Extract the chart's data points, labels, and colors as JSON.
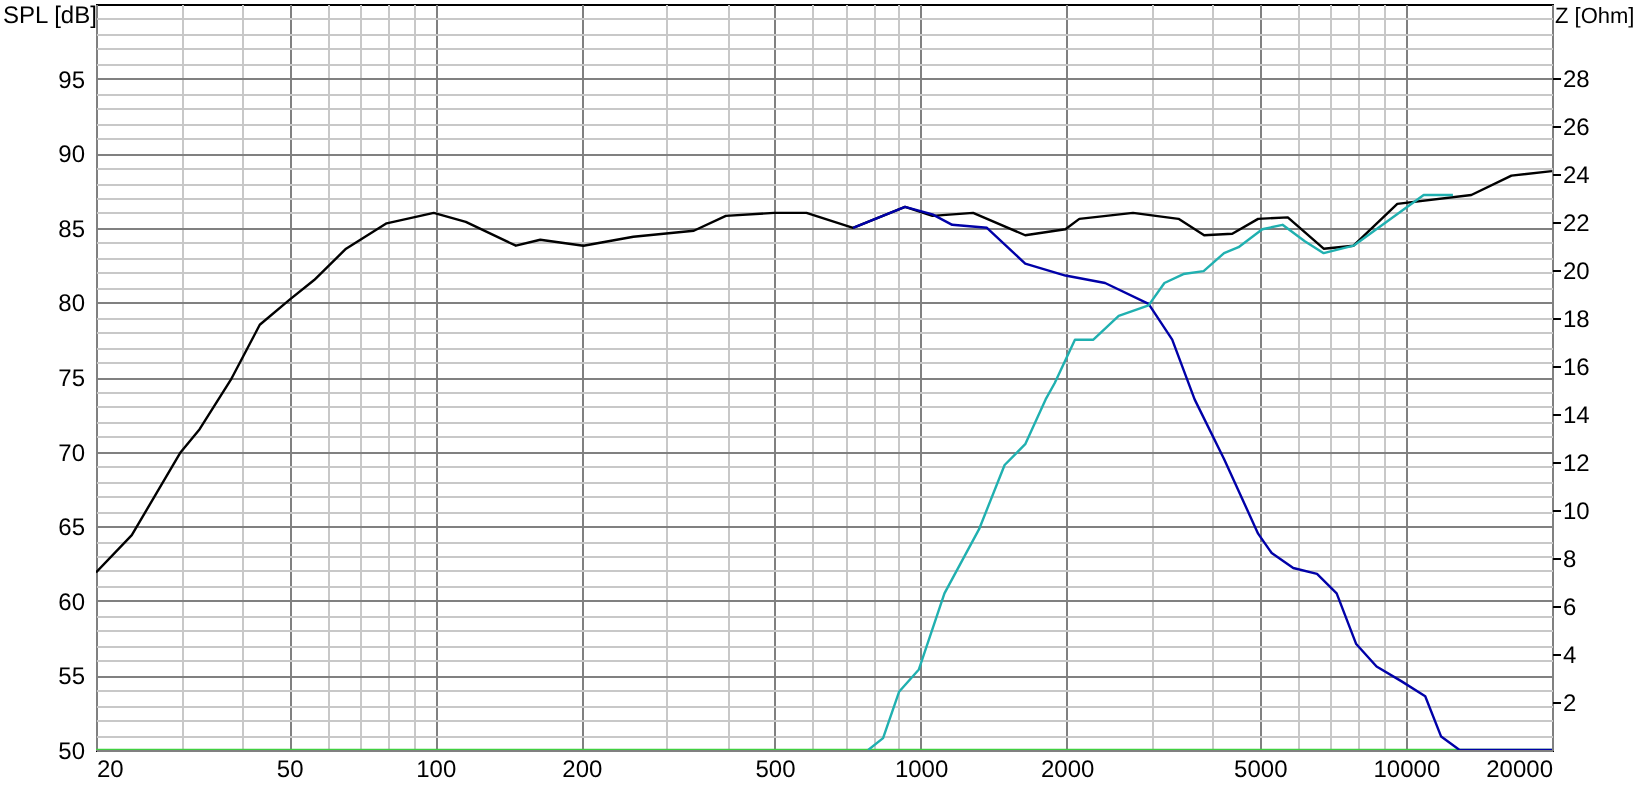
{
  "chart_data": {
    "type": "line",
    "ylabel": "SPL [dB]",
    "y2label": "Z [Ohm]",
    "xlim": [
      20,
      20000
    ],
    "log": "x",
    "grid": true,
    "xticks": [
      20,
      {
        "value": 30,
        "label": null
      },
      {
        "value": 40,
        "label": null
      },
      50,
      {
        "value": 60,
        "label": null
      },
      {
        "value": 70,
        "label": null
      },
      {
        "value": 80,
        "label": null
      },
      {
        "value": 90,
        "label": null
      },
      100,
      {
        "value": 200,
        "label": null
      },
      200,
      {
        "value": 300,
        "label": null
      },
      {
        "value": 400,
        "label": null
      },
      500,
      {
        "value": 600,
        "label": null
      },
      {
        "value": 700,
        "label": null
      },
      {
        "value": 800,
        "label": null
      },
      {
        "value": 900,
        "label": null
      },
      1000,
      2000,
      {
        "value": 3000,
        "label": null
      },
      {
        "value": 4000,
        "label": null
      },
      5000,
      {
        "value": 6000,
        "label": null
      },
      {
        "value": 7000,
        "label": null
      },
      {
        "value": 8000,
        "label": null
      },
      {
        "value": 9000,
        "label": null
      },
      10000,
      20000
    ],
    "ylim": [
      50,
      100
    ],
    "yticks": [
      50,
      {
        "value": 51,
        "label": null
      },
      {
        "value": 52,
        "label": null
      },
      {
        "value": 53,
        "label": null
      },
      {
        "value": 54,
        "label": null
      },
      55,
      {
        "value": 56,
        "label": null
      },
      {
        "value": 57,
        "label": null
      },
      {
        "value": 58,
        "label": null
      },
      {
        "value": 59,
        "label": null
      },
      60,
      {
        "value": 61,
        "label": null
      },
      {
        "value": 62,
        "label": null
      },
      {
        "value": 63,
        "label": null
      },
      {
        "value": 64,
        "label": null
      },
      65,
      {
        "value": 66,
        "label": null
      },
      {
        "value": 67,
        "label": null
      },
      {
        "value": 68,
        "label": null
      },
      {
        "value": 69,
        "label": null
      },
      70,
      {
        "value": 71,
        "label": null
      },
      {
        "value": 72,
        "label": null
      },
      {
        "value": 73,
        "label": null
      },
      {
        "value": 74,
        "label": null
      },
      75,
      {
        "value": 76,
        "label": null
      },
      {
        "value": 77,
        "label": null
      },
      {
        "value": 78,
        "label": null
      },
      {
        "value": 79,
        "label": null
      },
      80,
      {
        "value": 81,
        "label": null
      },
      {
        "value": 82,
        "label": null
      },
      {
        "value": 83,
        "label": null
      },
      {
        "value": 84,
        "label": null
      },
      85,
      {
        "value": 86,
        "label": null
      },
      {
        "value": 87,
        "label": null
      },
      {
        "value": 88,
        "label": null
      },
      {
        "value": 89,
        "label": null
      },
      90,
      {
        "value": 91,
        "label": null
      },
      {
        "value": 92,
        "label": null
      },
      {
        "value": 93,
        "label": null
      },
      {
        "value": 94,
        "label": null
      },
      95,
      {
        "value": 96,
        "label": null
      },
      {
        "value": 97,
        "label": null
      },
      {
        "value": 98,
        "label": null
      },
      {
        "value": 99,
        "label": null
      }
    ],
    "y2lim": [
      0,
      31.1
    ],
    "y2ticks": [
      2,
      4,
      6,
      8,
      10,
      12,
      14,
      16,
      18,
      20,
      22,
      24,
      26,
      28
    ],
    "series": [
      {
        "color": "#000000",
        "x": [
          20,
          23.7,
          29.8,
          32.7,
          37.9,
          43.5,
          50.2,
          56.3,
          65.5,
          79.4,
          99.3,
          115.6,
          146.6,
          164.6,
          202,
          256,
          341,
          397,
          499,
          582,
          726,
          929,
          1058,
          1283,
          1643,
          1988,
          2124,
          2740,
          3400,
          3840,
          4388,
          4960,
          5710,
          6770,
          7800,
          9600,
          13640,
          16500,
          20000
        ],
        "values": [
          61.9,
          64.4,
          69.9,
          71.5,
          74.8,
          78.5,
          80.2,
          81.5,
          83.6,
          85.3,
          86.0,
          85.4,
          83.8,
          84.2,
          83.8,
          84.4,
          84.8,
          85.8,
          86.0,
          86.0,
          85.0,
          86.4,
          85.8,
          86.0,
          84.5,
          84.9,
          85.6,
          86.0,
          85.6,
          84.5,
          84.6,
          85.6,
          85.7,
          83.6,
          83.8,
          86.6,
          87.2,
          88.5,
          88.8
        ]
      },
      {
        "color": "#0000a8",
        "x": [
          726,
          929,
          1058,
          1162,
          1370,
          1643,
          1988,
          2400,
          2950,
          3300,
          3670,
          4220,
          4960,
          5290,
          5860,
          6560,
          7200,
          7900,
          8700,
          9800,
          10960,
          11820,
          12900,
          20000
        ],
        "values": [
          85.0,
          86.4,
          85.9,
          85.2,
          85.0,
          82.6,
          81.8,
          81.3,
          79.9,
          77.5,
          73.5,
          69.5,
          64.5,
          63.2,
          62.2,
          61.8,
          60.5,
          57.1,
          55.6,
          54.6,
          53.6,
          50.9,
          50.0,
          50.0
        ]
      },
      {
        "color": "#20b0b0",
        "x": [
          780,
          837,
          903,
          992,
          1120,
          1320,
          1490,
          1643,
          1810,
          1890,
          2080,
          2270,
          2560,
          2950,
          3180,
          3480,
          3830,
          4220,
          4520,
          5060,
          5570,
          6190,
          6770,
          7800,
          10880,
          12500
        ],
        "values": [
          50.0,
          50.8,
          53.9,
          55.4,
          60.5,
          64.8,
          69.1,
          70.5,
          73.5,
          74.6,
          77.5,
          77.5,
          79.1,
          79.8,
          81.3,
          81.9,
          82.1,
          83.3,
          83.7,
          84.9,
          85.2,
          84.1,
          83.3,
          83.8,
          87.2,
          87.2
        ]
      },
      {
        "color": "#40d040",
        "axis": "y2",
        "x": [
          20,
          20000
        ],
        "values": [
          0,
          0
        ]
      }
    ]
  }
}
